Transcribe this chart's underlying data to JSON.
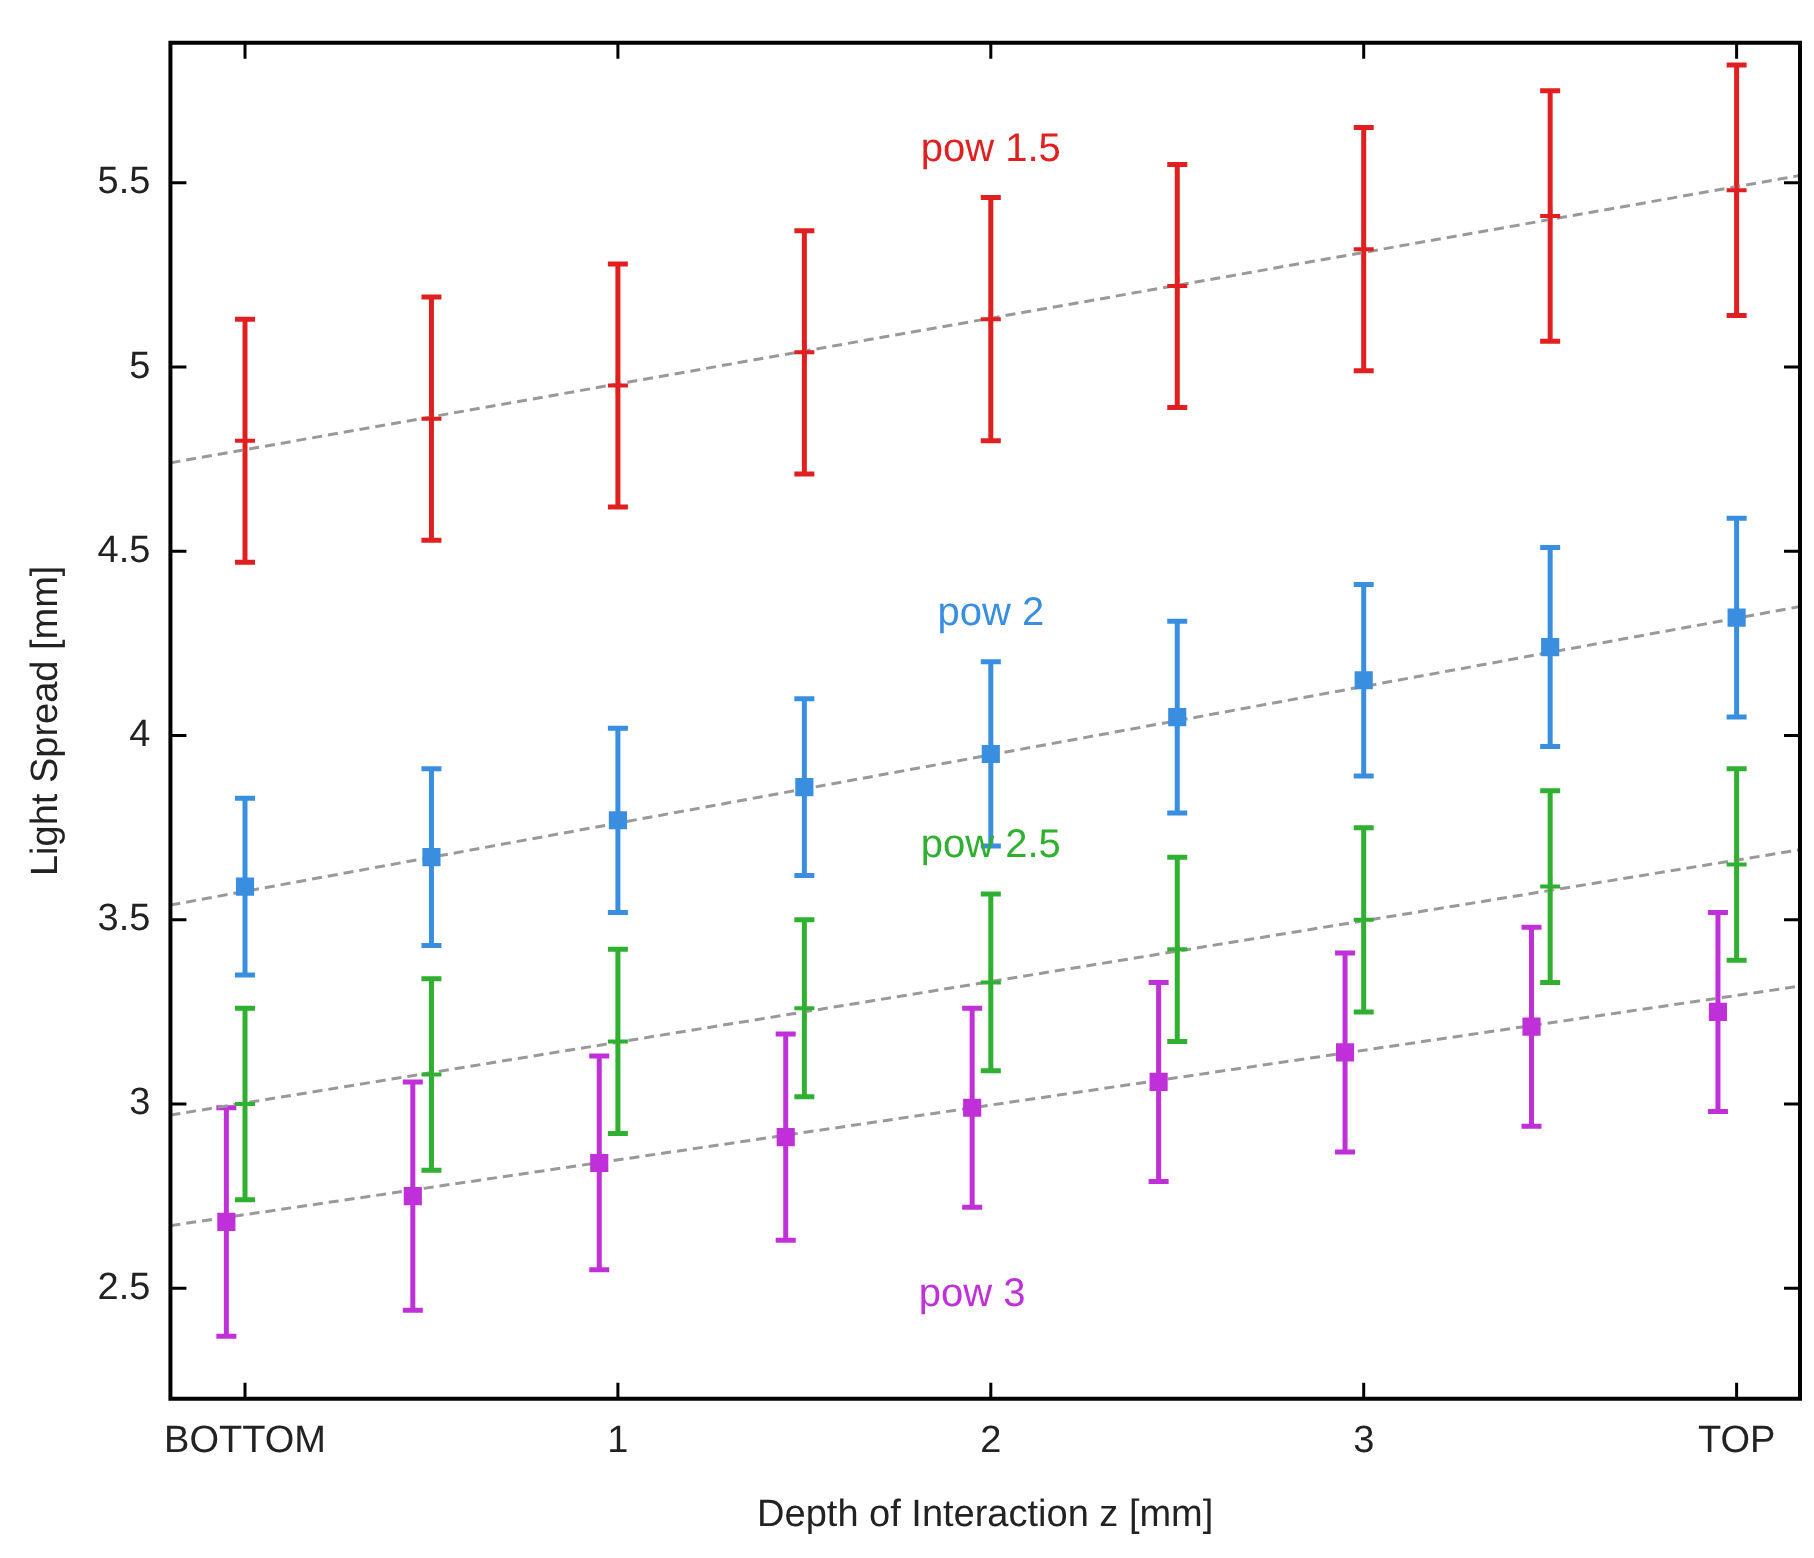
{
  "chart_data": {
    "type": "scatter",
    "xlabel": "Depth of Interaction z [mm]",
    "ylabel": "Light Spread [mm]",
    "x": [
      0,
      0.5,
      1,
      1.5,
      2,
      2.5,
      3,
      3.5,
      4
    ],
    "xlim": [
      -0.2,
      4.17
    ],
    "xticks": [
      {
        "value": 0,
        "label": "BOTTOM"
      },
      1,
      2,
      3,
      {
        "value": 4,
        "label": "TOP"
      }
    ],
    "ylim": [
      2.2,
      5.88
    ],
    "yticks": [
      2.5,
      3,
      3.5,
      4,
      4.5,
      5,
      5.5
    ],
    "legend": false,
    "series": [
      {
        "name": "pow 1.5",
        "color": "#e02020",
        "marker": "cross",
        "values": [
          4.8,
          4.86,
          4.95,
          5.04,
          5.13,
          5.22,
          5.32,
          5.41,
          5.48
        ],
        "errors": [
          0.33,
          0.33,
          0.33,
          0.33,
          0.33,
          0.33,
          0.33,
          0.34,
          0.34
        ]
      },
      {
        "name": "pow 2",
        "color": "#3a8ee0",
        "marker": "square",
        "values": [
          3.59,
          3.67,
          3.77,
          3.86,
          3.95,
          4.05,
          4.15,
          4.24,
          4.32
        ],
        "errors": [
          0.24,
          0.24,
          0.25,
          0.24,
          0.25,
          0.26,
          0.26,
          0.27,
          0.27
        ]
      },
      {
        "name": "pow 2.5",
        "color": "#30b030",
        "marker": "cross",
        "values": [
          3.0,
          3.08,
          3.17,
          3.26,
          3.33,
          3.42,
          3.5,
          3.59,
          3.65
        ],
        "errors": [
          0.26,
          0.26,
          0.25,
          0.24,
          0.24,
          0.25,
          0.25,
          0.26,
          0.26
        ]
      },
      {
        "name": "pow 3",
        "color": "#c030d8",
        "marker": "square",
        "x": [
          -0.05,
          0.45,
          0.95,
          1.45,
          1.95,
          2.45,
          2.95,
          3.45,
          3.95
        ],
        "values": [
          2.68,
          2.75,
          2.84,
          2.91,
          2.99,
          3.06,
          3.14,
          3.21,
          3.25
        ],
        "errors": [
          0.31,
          0.31,
          0.29,
          0.28,
          0.27,
          0.27,
          0.27,
          0.27,
          0.27
        ]
      },
      {
        "type": "line",
        "color": "#999999",
        "line_style": "dashed",
        "x": [
          -0.2,
          4.17
        ],
        "values": [
          4.74,
          5.52
        ]
      },
      {
        "type": "line",
        "color": "#999999",
        "line_style": "dashed",
        "x": [
          -0.2,
          4.17
        ],
        "values": [
          3.54,
          4.35
        ]
      },
      {
        "type": "line",
        "color": "#999999",
        "line_style": "dashed",
        "x": [
          -0.2,
          4.17
        ],
        "values": [
          2.97,
          3.69
        ]
      },
      {
        "type": "line",
        "color": "#999999",
        "line_style": "dashed",
        "x": [
          -0.2,
          4.17
        ],
        "values": [
          2.67,
          3.32
        ]
      }
    ]
  }
}
